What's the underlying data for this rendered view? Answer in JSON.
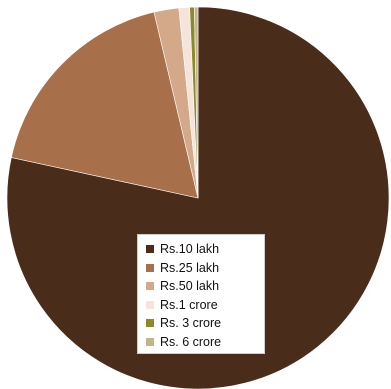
{
  "chart_data": {
    "type": "pie",
    "categories": [
      "Rs.10 lakh",
      "Rs.25 lakh",
      "Rs.50 lakh",
      "Rs.1 crore",
      "Rs. 3 crore",
      "Rs. 6 crore"
    ],
    "values": [
      78.4,
      17.9,
      2.1,
      0.9,
      0.4,
      0.3
    ],
    "colors": [
      "#4a2c1b",
      "#a8704a",
      "#d4a98a",
      "#f6e4dc",
      "#8b8a2a",
      "#c4b488"
    ],
    "legend_position": "bottom-center"
  }
}
